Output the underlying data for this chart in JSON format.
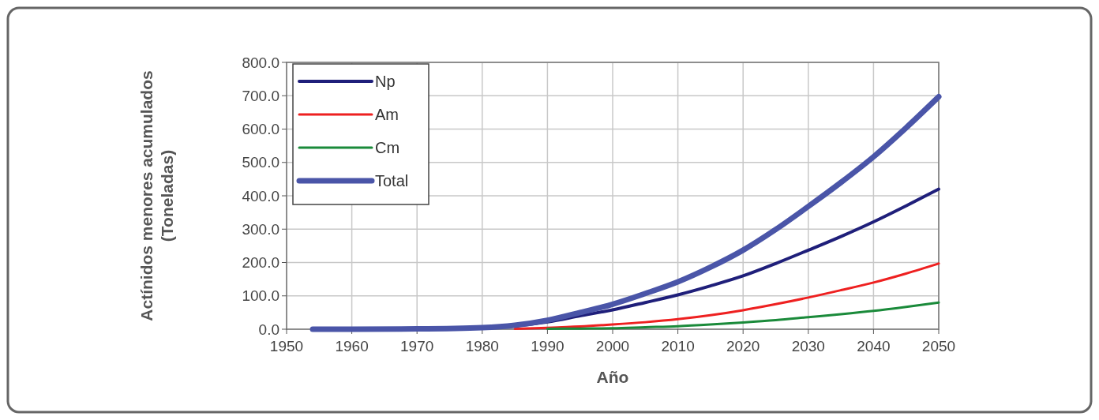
{
  "chart_data": {
    "type": "line",
    "xlabel": "Año",
    "ylabel": "Actínidos menores acumulados\n(Toneladas)",
    "x": [
      1954,
      1960,
      1970,
      1980,
      1985,
      1990,
      1995,
      2000,
      2005,
      2010,
      2015,
      2020,
      2025,
      2030,
      2035,
      2040,
      2045,
      2050
    ],
    "series": [
      {
        "name": "Np",
        "color": "#1f1f7a",
        "values": [
          0,
          0,
          1,
          4,
          10,
          22,
          40,
          58,
          80,
          103,
          130,
          160,
          197,
          237,
          278,
          322,
          370,
          420
        ]
      },
      {
        "name": "Am",
        "color": "#ee2020",
        "x": [
          1985,
          1990,
          1995,
          2000,
          2005,
          2010,
          2015,
          2020,
          2025,
          2030,
          2035,
          2040,
          2045,
          2050
        ],
        "values": [
          1,
          4,
          8,
          14,
          21,
          30,
          42,
          57,
          75,
          95,
          117,
          140,
          167,
          197
        ]
      },
      {
        "name": "Cm",
        "color": "#1a8a3a",
        "x": [
          1990,
          1995,
          2000,
          2005,
          2010,
          2015,
          2020,
          2025,
          2030,
          2035,
          2040,
          2045,
          2050
        ],
        "values": [
          1,
          2,
          3,
          6,
          9,
          14,
          20,
          27,
          36,
          45,
          55,
          67,
          80
        ]
      },
      {
        "name": "Total",
        "color": "#4a55a8",
        "values": [
          0,
          0,
          1,
          5,
          12,
          27,
          50,
          75,
          107,
          142,
          186,
          237,
          299,
          368,
          440,
          517,
          604,
          697
        ]
      }
    ],
    "xlim": [
      1950,
      2050
    ],
    "xticks": [
      1950,
      1960,
      1970,
      1980,
      1990,
      2000,
      2010,
      2020,
      2030,
      2040,
      2050
    ],
    "ylim": [
      0,
      800
    ],
    "yticks": [
      {
        "value": 0,
        "label": "0.0"
      },
      {
        "value": 100,
        "label": "100.0"
      },
      {
        "value": 200,
        "label": "200.0"
      },
      {
        "value": 300,
        "label": "300.0"
      },
      {
        "value": 400,
        "label": "400.0"
      },
      {
        "value": 500,
        "label": "500.0"
      },
      {
        "value": 600,
        "label": "600.0"
      },
      {
        "value": 700,
        "label": "700.0"
      },
      {
        "value": 800,
        "label": "800.0"
      }
    ],
    "grid": true,
    "legend": "top left",
    "marker": "none",
    "line_style": "solid"
  }
}
